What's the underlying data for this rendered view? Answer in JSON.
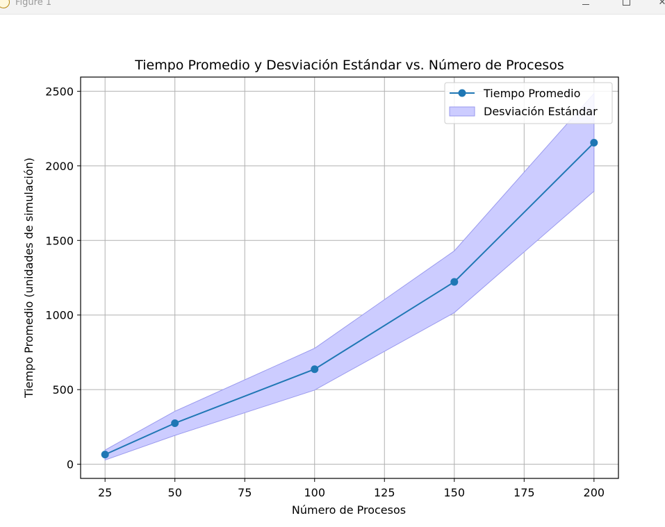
{
  "window": {
    "title": "Figure 1",
    "minimize_icon": "minimize-icon",
    "maximize_icon": "maximize-icon",
    "close_icon": "close-icon"
  },
  "chart_data": {
    "type": "line",
    "title": "Tiempo Promedio y Desviación Estándar vs. Número de Procesos",
    "xlabel": "Número de Procesos",
    "ylabel": "Tiempo Promedio (unidades de simulación)",
    "xlim": [
      16.25,
      208.75
    ],
    "ylim": [
      -95,
      2595
    ],
    "xticks": [
      25,
      50,
      75,
      100,
      125,
      150,
      175,
      200
    ],
    "yticks": [
      0,
      500,
      1000,
      1500,
      2000,
      2500
    ],
    "grid": true,
    "legend": {
      "placement": "top-right"
    },
    "x": [
      25,
      50,
      100,
      150,
      200
    ],
    "series": [
      {
        "name": "Tiempo Promedio",
        "kind": "line-marker",
        "color": "#1f77b4",
        "values": [
          65,
          275,
          637,
          1222,
          2155
        ]
      },
      {
        "name": "Desviación Estándar",
        "kind": "band",
        "color": "#ccccff",
        "edge_color": "#9999ee",
        "lower": [
          28,
          193,
          497,
          1016,
          1830
        ],
        "upper": [
          95,
          355,
          777,
          1430,
          2485
        ]
      }
    ]
  }
}
